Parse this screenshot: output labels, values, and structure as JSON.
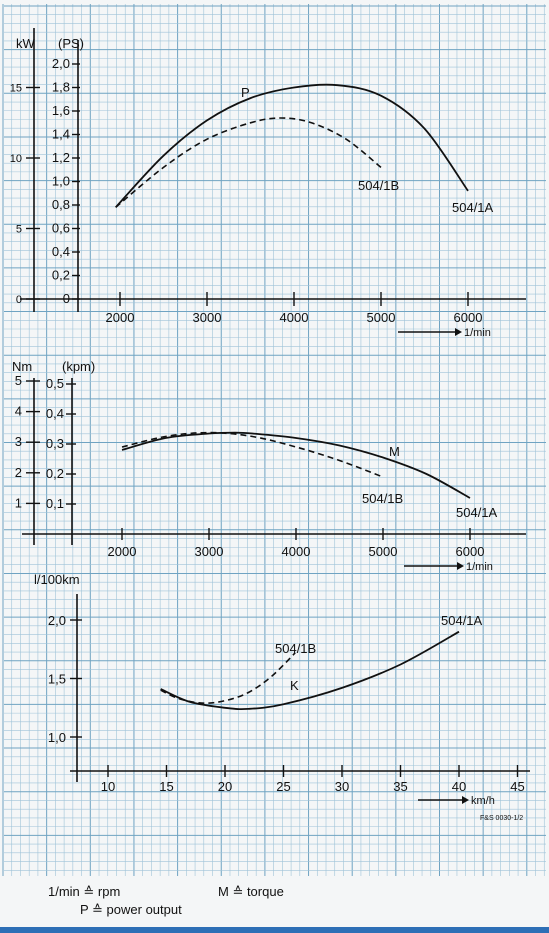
{
  "chart_data": [
    {
      "type": "line",
      "title": "",
      "xlabel": "1/min",
      "ylabel": "kW",
      "ylabel2": "(PS)",
      "x_ticks": [
        "2000",
        "3000",
        "4000",
        "5000",
        "6000"
      ],
      "y_ticks_kw": [
        "0",
        "5",
        "10",
        "15"
      ],
      "y_ticks_ps": [
        "0",
        "0,2",
        "0,4",
        "0,6",
        "0,8",
        "1,0",
        "1,2",
        "1,4",
        "1,6",
        "1,8",
        "2,0"
      ],
      "xlim": [
        1200,
        6700
      ],
      "ylim": [
        0,
        2.1
      ],
      "curve_label": "P",
      "series": [
        {
          "name": "504/1A",
          "style": "solid",
          "x": [
            1950,
            2500,
            3000,
            3500,
            4000,
            4500,
            5000,
            5500,
            6000
          ],
          "y": [
            0.78,
            1.22,
            1.52,
            1.71,
            1.8,
            1.82,
            1.73,
            1.45,
            0.92
          ]
        },
        {
          "name": "504/1B",
          "style": "dashed",
          "x": [
            1950,
            2500,
            3000,
            3500,
            3850,
            4200,
            4600,
            5000
          ],
          "y": [
            0.78,
            1.12,
            1.36,
            1.5,
            1.54,
            1.5,
            1.36,
            1.12
          ]
        }
      ]
    },
    {
      "type": "line",
      "title": "",
      "xlabel": "1/min",
      "ylabel": "Nm",
      "ylabel2": "(kpm)",
      "x_ticks": [
        "2000",
        "3000",
        "4000",
        "5000",
        "6000"
      ],
      "y_ticks_nm": [
        "1",
        "2",
        "3",
        "4",
        "5"
      ],
      "y_ticks_kpm": [
        "0,1",
        "0,2",
        "0,3",
        "0,4",
        "0,5"
      ],
      "xlim": [
        1200,
        6700
      ],
      "ylim": [
        0,
        0.55
      ],
      "curve_label": "M",
      "series": [
        {
          "name": "504/1A",
          "style": "solid",
          "x": [
            2000,
            2500,
            3000,
            3300,
            3500,
            4000,
            4500,
            5000,
            5500,
            6000
          ],
          "y": [
            0.28,
            0.32,
            0.335,
            0.338,
            0.335,
            0.32,
            0.295,
            0.255,
            0.2,
            0.12
          ]
        },
        {
          "name": "504/1B",
          "style": "dashed",
          "x": [
            2000,
            2500,
            3000,
            3500,
            4000,
            4500,
            5000
          ],
          "y": [
            0.29,
            0.325,
            0.338,
            0.325,
            0.29,
            0.245,
            0.19
          ]
        }
      ]
    },
    {
      "type": "line",
      "title": "",
      "xlabel": "km/h",
      "ylabel": "l/100km",
      "x_ticks": [
        "10",
        "15",
        "20",
        "25",
        "30",
        "35",
        "40",
        "45"
      ],
      "y_ticks": [
        "1,0",
        "1,5",
        "2,0"
      ],
      "xlim": [
        7,
        47
      ],
      "ylim": [
        0.7,
        2.35
      ],
      "curve_label": "K",
      "series": [
        {
          "name": "504/1A",
          "style": "solid",
          "x": [
            14.5,
            17,
            20,
            22,
            25,
            30,
            35,
            40
          ],
          "y": [
            1.41,
            1.3,
            1.25,
            1.24,
            1.28,
            1.42,
            1.62,
            1.9
          ]
        },
        {
          "name": "504/1B",
          "style": "dashed",
          "x": [
            14.5,
            16,
            18,
            20,
            22,
            24,
            26
          ],
          "y": [
            1.4,
            1.33,
            1.29,
            1.31,
            1.38,
            1.52,
            1.72
          ]
        }
      ]
    }
  ],
  "watermark_code": "F&S 0030-1/2",
  "legend": {
    "rpm": "1/min ≙ rpm",
    "torque": "M ≙ torque",
    "power": "P ≙ power output"
  }
}
